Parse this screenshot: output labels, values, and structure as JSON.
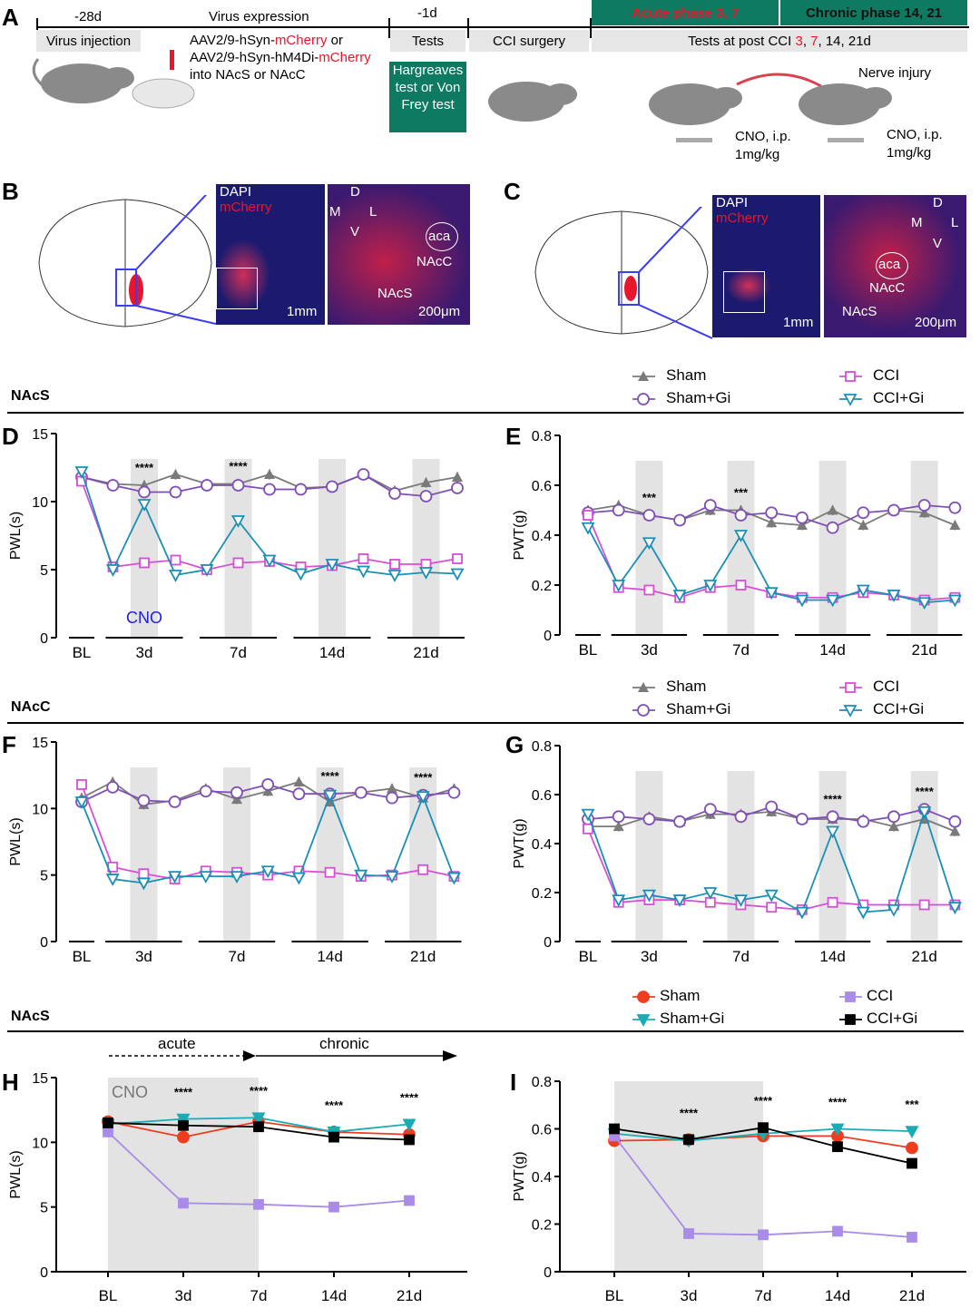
{
  "panel_a": {
    "letter": "A",
    "timeline_labels": [
      "-28d",
      "Virus expression",
      "-1d"
    ],
    "phase_acute": "Acute phase 3, 7",
    "phase_chronic": "Chronic phase 14, 21",
    "box_virus_injection": "Virus injection",
    "box_tests": "Tests",
    "box_cci": "CCI surgery",
    "box_post_prefix": "Tests at post CCI ",
    "box_post_3": "3",
    "box_post_sep": ", ",
    "box_post_7": "7",
    "box_post_suffix": ", 14, 21d",
    "virus_line1_a": "AAV2/9-hSyn-",
    "virus_line1_b": "mCherry",
    "virus_line1_c": " or",
    "virus_line2_a": "AAV2/9-hSyn-hM4Di-",
    "virus_line2_b": "mCherry",
    "virus_line3": "into NAcS or NAcC",
    "test_box": "Hargreaves test or Von Frey test",
    "nerve_injury": "Nerve injury",
    "cno1": "CNO, i.p.",
    "dose1": "1mg/kg",
    "cno2": "CNO, i.p.",
    "dose2": "1mg/kg",
    "accent_green": "#0e7a62",
    "accent_red": "#e8162b"
  },
  "panel_b": {
    "letter": "B",
    "dapi": "DAPI",
    "mcherry": "mCherry",
    "scale1": "1mm",
    "scale2": "200μm",
    "d": "D",
    "v": "V",
    "m": "M",
    "l": "L",
    "aca": "aca",
    "nacc": "NAcC",
    "nacs": "NAcS"
  },
  "panel_c": {
    "letter": "C",
    "dapi": "DAPI",
    "mcherry": "mCherry",
    "scale1": "1mm",
    "scale2": "200μm",
    "d": "D",
    "v": "V",
    "m": "M",
    "l": "L",
    "aca": "aca",
    "nacc": "NAcC",
    "nacs": "NAcS"
  },
  "sections": {
    "s1": "NAcS",
    "s2": "NAcC",
    "s3": "NAcS"
  },
  "legend1": {
    "sham": "Sham",
    "sham_gi": "Sham+Gi",
    "cci": "CCI",
    "cci_gi": "CCI+Gi"
  },
  "legend2": {
    "sham": "Sham",
    "sham_gi": "Sham+Gi",
    "cci": "CCI",
    "cci_gi": "CCI+Gi"
  },
  "legend3": {
    "sham": "Sham",
    "sham_gi": "Sham+Gi",
    "cci": "CCI",
    "cci_gi": "CCI+Gi"
  },
  "arrows": {
    "acute": "acute",
    "chronic": "chronic"
  },
  "colors": {
    "sham": "#7a7a7a",
    "sham_gi": "#7f4fb5",
    "cci": "#d64fd6",
    "cci_gi": "#1a8fb5",
    "h_sham": "#f03c1e",
    "h_sham_gi": "#1aabb5",
    "h_cci": "#a98be8",
    "h_cci_gi": "#000000"
  },
  "chart_data": [
    {
      "panel": "D",
      "type": "line",
      "ylabel": "PWL(s)",
      "ylim": [
        0,
        15
      ],
      "yticks": [
        0,
        5,
        10,
        15
      ],
      "group_labels": [
        "BL",
        "3d",
        "7d",
        "14d",
        "21d"
      ],
      "cno_label": "CNO",
      "cno_shaded_points": [
        3,
        6,
        9,
        12
      ],
      "significance": [
        {
          "group": "3d",
          "label": "****"
        },
        {
          "group": "7d",
          "label": "****"
        }
      ],
      "series": [
        {
          "name": "Sham",
          "values": [
            11.8,
            11.3,
            11.2,
            12.0,
            11.3,
            11.3,
            12.0,
            11.0,
            11.1,
            12.0,
            10.8,
            11.4,
            11.8
          ]
        },
        {
          "name": "Sham+Gi",
          "values": [
            11.8,
            11.2,
            10.7,
            10.7,
            11.2,
            11.2,
            10.9,
            10.9,
            11.1,
            12.0,
            10.6,
            10.4,
            11.0
          ]
        },
        {
          "name": "CCI",
          "values": [
            11.5,
            5.2,
            5.5,
            5.7,
            5.0,
            5.5,
            5.6,
            5.2,
            5.3,
            5.8,
            5.4,
            5.4,
            5.8
          ]
        },
        {
          "name": "CCI+Gi",
          "values": [
            12.2,
            5.0,
            9.8,
            4.6,
            5.0,
            8.6,
            5.7,
            4.7,
            5.4,
            4.9,
            4.6,
            4.8,
            4.7
          ]
        }
      ]
    },
    {
      "panel": "E",
      "type": "line",
      "ylabel": "PWT(g)",
      "ylim": [
        0,
        0.8
      ],
      "yticks": [
        0,
        0.2,
        0.4,
        0.6,
        0.8
      ],
      "group_labels": [
        "BL",
        "3d",
        "7d",
        "14d",
        "21d"
      ],
      "cno_shaded_points": [
        3,
        6,
        9,
        12
      ],
      "significance": [
        {
          "group": "3d",
          "label": "***"
        },
        {
          "group": "7d",
          "label": "***"
        }
      ],
      "series": [
        {
          "name": "Sham",
          "values": [
            0.5,
            0.52,
            0.48,
            0.46,
            0.5,
            0.5,
            0.45,
            0.44,
            0.5,
            0.44,
            0.5,
            0.49,
            0.44
          ]
        },
        {
          "name": "Sham+Gi",
          "values": [
            0.49,
            0.5,
            0.48,
            0.46,
            0.52,
            0.48,
            0.49,
            0.47,
            0.43,
            0.49,
            0.5,
            0.52,
            0.51
          ]
        },
        {
          "name": "CCI",
          "values": [
            0.48,
            0.19,
            0.18,
            0.15,
            0.19,
            0.2,
            0.17,
            0.15,
            0.15,
            0.17,
            0.16,
            0.14,
            0.15
          ]
        },
        {
          "name": "CCI+Gi",
          "values": [
            0.43,
            0.2,
            0.37,
            0.16,
            0.2,
            0.4,
            0.17,
            0.14,
            0.14,
            0.18,
            0.16,
            0.13,
            0.14
          ]
        }
      ]
    },
    {
      "panel": "F",
      "type": "line",
      "ylabel": "PWL(s)",
      "ylim": [
        0,
        15
      ],
      "yticks": [
        0,
        5,
        10,
        15
      ],
      "group_labels": [
        "BL",
        "3d",
        "7d",
        "14d",
        "21d"
      ],
      "cno_shaded_points": [
        3,
        6,
        9,
        12
      ],
      "significance": [
        {
          "group": "14d",
          "label": "****"
        },
        {
          "group": "21d",
          "label": "****"
        }
      ],
      "series": [
        {
          "name": "Sham",
          "values": [
            10.8,
            12.0,
            10.3,
            10.6,
            11.5,
            10.7,
            11.3,
            12.0,
            10.5,
            11.2,
            11.5,
            10.8,
            11.5
          ]
        },
        {
          "name": "Sham+Gi",
          "values": [
            10.5,
            11.6,
            10.6,
            10.5,
            11.3,
            11.2,
            11.8,
            11.1,
            11.1,
            11.2,
            10.8,
            11.0,
            11.2
          ]
        },
        {
          "name": "CCI",
          "values": [
            11.8,
            5.6,
            5.1,
            4.7,
            5.3,
            5.2,
            5.0,
            5.3,
            5.2,
            4.9,
            5.0,
            5.4,
            4.9
          ]
        },
        {
          "name": "CCI+Gi",
          "values": [
            10.5,
            4.7,
            4.4,
            4.9,
            4.9,
            4.9,
            5.3,
            4.8,
            11.0,
            5.0,
            4.9,
            10.9,
            4.8
          ]
        }
      ]
    },
    {
      "panel": "G",
      "type": "line",
      "ylabel": "PWT(g)",
      "ylim": [
        0,
        0.8
      ],
      "yticks": [
        0,
        0.2,
        0.4,
        0.6,
        0.8
      ],
      "group_labels": [
        "BL",
        "3d",
        "7d",
        "14d",
        "21d"
      ],
      "cno_shaded_points": [
        3,
        6,
        9,
        12
      ],
      "significance": [
        {
          "group": "14d",
          "label": "****"
        },
        {
          "group": "21d",
          "label": "****"
        }
      ],
      "series": [
        {
          "name": "Sham",
          "values": [
            0.47,
            0.47,
            0.51,
            0.49,
            0.52,
            0.52,
            0.53,
            0.5,
            0.5,
            0.5,
            0.47,
            0.5,
            0.45
          ]
        },
        {
          "name": "Sham+Gi",
          "values": [
            0.5,
            0.51,
            0.5,
            0.49,
            0.54,
            0.51,
            0.55,
            0.5,
            0.51,
            0.49,
            0.51,
            0.54,
            0.49
          ]
        },
        {
          "name": "CCI",
          "values": [
            0.46,
            0.16,
            0.17,
            0.17,
            0.16,
            0.15,
            0.14,
            0.13,
            0.16,
            0.15,
            0.15,
            0.15,
            0.15
          ]
        },
        {
          "name": "CCI+Gi",
          "values": [
            0.52,
            0.17,
            0.19,
            0.17,
            0.2,
            0.17,
            0.19,
            0.12,
            0.45,
            0.12,
            0.13,
            0.53,
            0.14
          ]
        }
      ]
    },
    {
      "panel": "H",
      "type": "line",
      "ylabel": "PWL(s)",
      "ylim": [
        0,
        15
      ],
      "yticks": [
        0,
        5,
        10,
        15
      ],
      "categories": [
        "BL",
        "3d",
        "7d",
        "14d",
        "21d"
      ],
      "cno_label": "CNO",
      "cno_shaded_range": [
        "BL",
        "7d"
      ],
      "significance": [
        {
          "group": "3d",
          "label": "****"
        },
        {
          "group": "7d",
          "label": "****"
        },
        {
          "group": "14d",
          "label": "****"
        },
        {
          "group": "21d",
          "label": "****"
        }
      ],
      "series": [
        {
          "name": "Sham",
          "values": [
            11.6,
            10.4,
            11.6,
            10.8,
            10.6
          ]
        },
        {
          "name": "Sham+Gi",
          "values": [
            11.4,
            11.8,
            11.9,
            10.8,
            11.4
          ]
        },
        {
          "name": "CCI",
          "values": [
            10.8,
            5.3,
            5.2,
            5.0,
            5.5
          ]
        },
        {
          "name": "CCI+Gi",
          "values": [
            11.5,
            11.3,
            11.2,
            10.4,
            10.2
          ]
        }
      ]
    },
    {
      "panel": "I",
      "type": "line",
      "ylabel": "PWT(g)",
      "ylim": [
        0,
        0.8
      ],
      "yticks": [
        0,
        0.2,
        0.4,
        0.6,
        0.8
      ],
      "categories": [
        "BL",
        "3d",
        "7d",
        "14d",
        "21d"
      ],
      "cno_shaded_range": [
        "BL",
        "7d"
      ],
      "significance": [
        {
          "group": "3d",
          "label": "****"
        },
        {
          "group": "7d",
          "label": "****"
        },
        {
          "group": "14d",
          "label": "****"
        },
        {
          "group": "21d",
          "label": "***"
        }
      ],
      "series": [
        {
          "name": "Sham",
          "values": [
            0.55,
            0.555,
            0.57,
            0.57,
            0.52
          ]
        },
        {
          "name": "Sham+Gi",
          "values": [
            0.58,
            0.55,
            0.58,
            0.6,
            0.59
          ]
        },
        {
          "name": "CCI",
          "values": [
            0.57,
            0.16,
            0.155,
            0.17,
            0.145
          ]
        },
        {
          "name": "CCI+Gi",
          "values": [
            0.6,
            0.555,
            0.605,
            0.525,
            0.455
          ]
        }
      ]
    }
  ]
}
